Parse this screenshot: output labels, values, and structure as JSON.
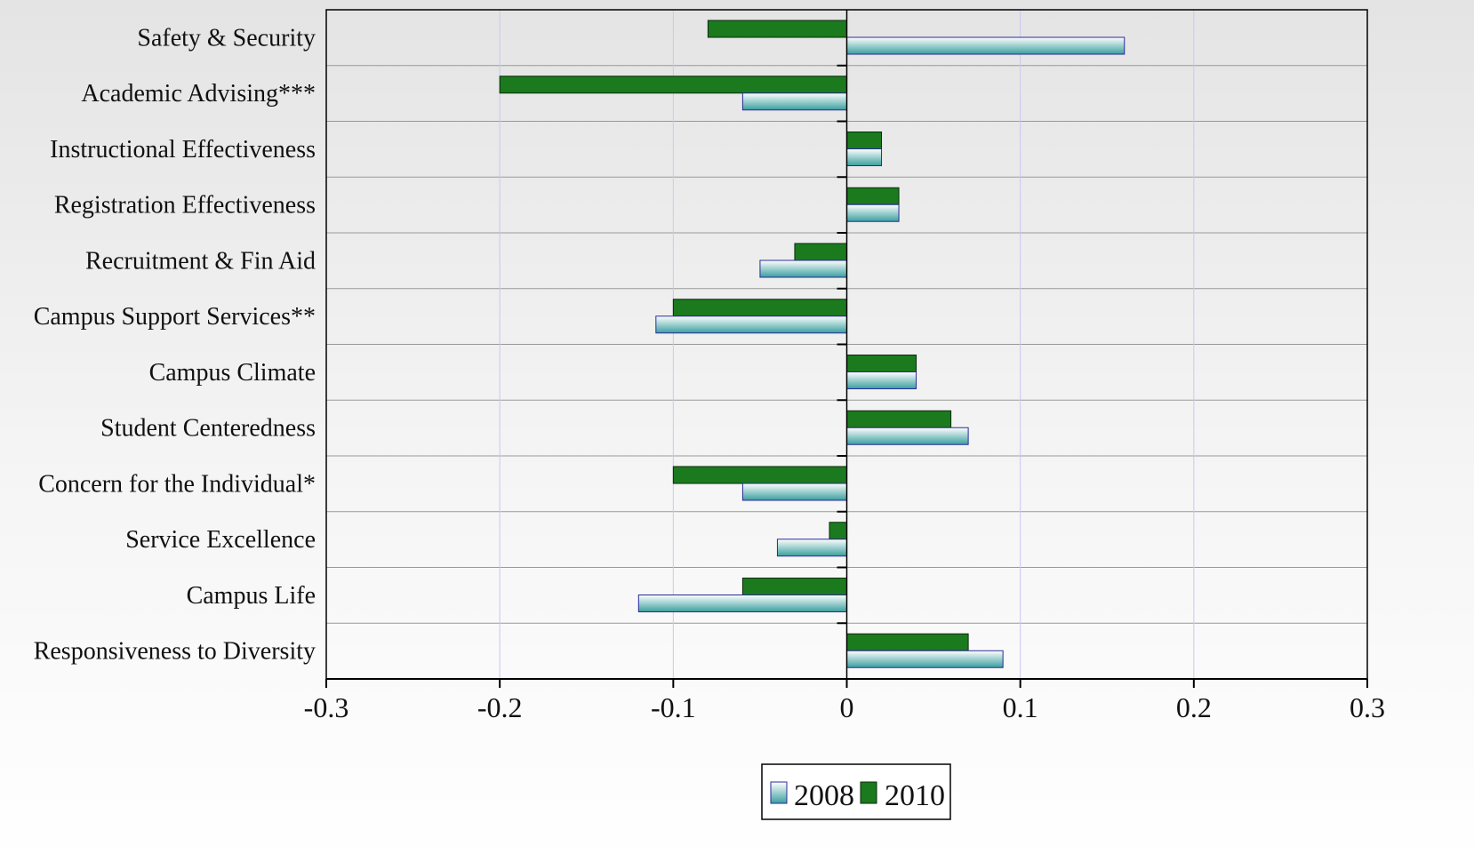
{
  "chart_data": {
    "type": "bar",
    "orientation": "horizontal",
    "categories": [
      "Safety & Security",
      "Academic Advising***",
      "Instructional Effectiveness",
      "Registration Effectiveness",
      "Recruitment & Fin Aid",
      "Campus Support Services**",
      "Campus Climate",
      "Student Centeredness",
      "Concern for the Individual*",
      "Service Excellence",
      "Campus Life",
      "Responsiveness to Diversity"
    ],
    "series": [
      {
        "name": "2008",
        "values": [
          0.16,
          -0.06,
          0.02,
          0.03,
          -0.05,
          -0.11,
          0.04,
          0.07,
          -0.06,
          -0.04,
          -0.12,
          0.09
        ]
      },
      {
        "name": "2010",
        "values": [
          -0.08,
          -0.2,
          0.02,
          0.03,
          -0.03,
          -0.1,
          0.04,
          0.06,
          -0.1,
          -0.01,
          -0.06,
          0.07
        ]
      }
    ],
    "xlim": [
      -0.3,
      0.3
    ],
    "xticks": [
      "-0.3",
      "-0.2",
      "-0.1",
      "0",
      "0.1",
      "0.2",
      "0.3"
    ],
    "grid": true,
    "legend_position": "bottom-center",
    "colors": {
      "2008_fill_top": "#ffffff",
      "2008_fill_bottom": "#3a9f9f",
      "2008_border": "#2a2a9a",
      "2010_fill": "#1b7a1e",
      "2010_border": "#0b2a0b",
      "gridline": "#c8c8f0",
      "band_line": "#999999",
      "axis": "#000000"
    }
  }
}
